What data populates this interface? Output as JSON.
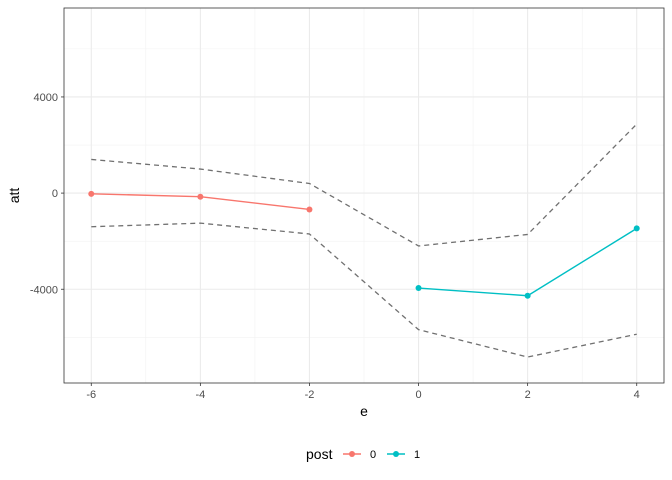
{
  "chart_data": {
    "type": "line",
    "xlabel": "e",
    "ylabel": "att",
    "xlim": [
      -6.5,
      4.5
    ],
    "ylim": [
      -7900,
      7700
    ],
    "x_ticks": [
      -6,
      -4,
      -2,
      0,
      2,
      4
    ],
    "x_tick_labels": [
      "-6",
      "-4",
      "-2",
      "0",
      "2",
      "4"
    ],
    "y_ticks": [
      -4000,
      0,
      4000
    ],
    "y_tick_labels": [
      "-4000",
      "0",
      "4000"
    ],
    "grid": true,
    "legend": {
      "title": "post",
      "placement": "bottom",
      "entries": [
        {
          "label": "0",
          "color": "#F8766D"
        },
        {
          "label": "1",
          "color": "#00BFC4"
        }
      ]
    },
    "series": [
      {
        "name": "0",
        "color": "#F8766D",
        "x": [
          -6,
          -4,
          -2
        ],
        "y": [
          -30,
          -150,
          -680
        ]
      },
      {
        "name": "1",
        "color": "#00BFC4",
        "x": [
          0,
          2,
          4
        ],
        "y": [
          -3950,
          -4270,
          -1470
        ]
      }
    ],
    "confidence_bounds": {
      "color": "#707070",
      "style": "dashed",
      "x": [
        -6,
        -4,
        -2,
        0,
        2,
        4
      ],
      "upper": [
        1400,
        1000,
        400,
        -2200,
        -1720,
        2870
      ],
      "lower": [
        -1400,
        -1250,
        -1700,
        -5680,
        -6820,
        -5870
      ]
    }
  }
}
